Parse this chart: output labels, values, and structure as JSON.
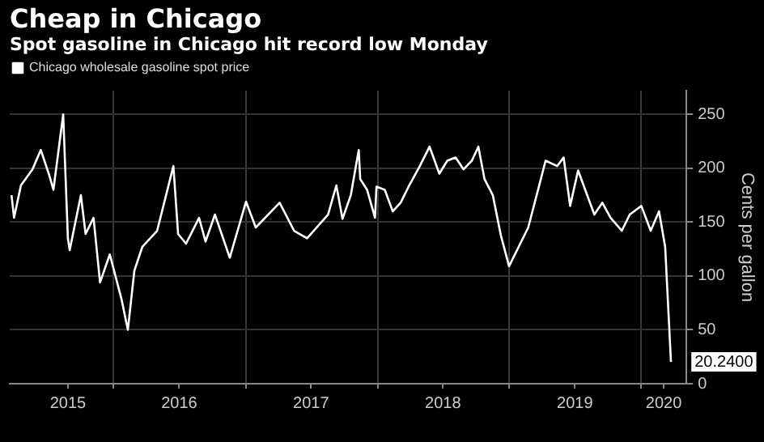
{
  "chart_data": {
    "type": "line",
    "title": "Cheap in Chicago",
    "subtitle": "Spot gasoline in Chicago hit record low Monday",
    "ylabel": "Cents per gallon",
    "x": [
      "2015-03-25",
      "2015-04-01",
      "2015-04-20",
      "2015-05-22",
      "2015-06-14",
      "2015-07-06",
      "2015-07-19",
      "2015-08-15",
      "2015-08-28",
      "2015-09-02",
      "2015-10-03",
      "2015-10-16",
      "2015-11-07",
      "2015-11-25",
      "2015-12-22",
      "2016-01-23",
      "2016-02-10",
      "2016-02-28",
      "2016-03-21",
      "2016-05-01",
      "2016-06-15",
      "2016-06-28",
      "2016-07-20",
      "2016-08-25",
      "2016-09-12",
      "2016-10-08",
      "2016-11-18",
      "2017-01-02",
      "2017-01-29",
      "2017-04-05",
      "2017-05-15",
      "2017-06-20",
      "2017-08-17",
      "2017-09-09",
      "2017-09-26",
      "2017-10-19",
      "2017-11-10",
      "2017-11-14",
      "2017-12-03",
      "2017-12-25",
      "2017-12-29",
      "2018-01-21",
      "2018-02-12",
      "2018-03-06",
      "2018-03-28",
      "2018-04-28",
      "2018-05-25",
      "2018-06-21",
      "2018-07-13",
      "2018-08-05",
      "2018-08-27",
      "2018-09-19",
      "2018-10-07",
      "2018-10-24",
      "2018-11-16",
      "2018-12-08",
      "2018-12-31",
      "2019-01-22",
      "2019-02-22",
      "2019-03-29",
      "2019-04-11",
      "2019-05-13",
      "2019-05-31",
      "2019-06-18",
      "2019-07-10",
      "2019-08-02",
      "2019-08-24",
      "2019-09-15",
      "2019-10-08",
      "2019-11-08",
      "2019-11-30",
      "2020-01-01",
      "2020-01-27",
      "2020-02-19",
      "2020-03-07",
      "2020-03-23"
    ],
    "series": [
      {
        "name": "Chicago wholesale gasoline spot price",
        "color": "#ffffff",
        "values": [
          175,
          154,
          184,
          199,
          217,
          195,
          180,
          250,
          135,
          124,
          175,
          139,
          154,
          94,
          120,
          79,
          50,
          105,
          127,
          142,
          202,
          139,
          130,
          154,
          132,
          157,
          117,
          169,
          145,
          168,
          142,
          135,
          157,
          184,
          153,
          175,
          217,
          190,
          180,
          154,
          183,
          180,
          160,
          168,
          183,
          202,
          220,
          195,
          207,
          210,
          199,
          207,
          220,
          190,
          175,
          138,
          109,
          124,
          145,
          190,
          207,
          202,
          210,
          165,
          198,
          177,
          157,
          168,
          154,
          142,
          157,
          165,
          142,
          160,
          127,
          20.24
        ]
      }
    ],
    "xlim": [
      "2015-03-20",
      "2020-05-05"
    ],
    "xticks": [
      {
        "value": "2015-08-28",
        "label": "2015"
      },
      {
        "value": "2016-01-01",
        "label": null
      },
      {
        "value": "2016-07-01",
        "label": "2016"
      },
      {
        "value": "2017-01-01",
        "label": null
      },
      {
        "value": "2017-07-01",
        "label": "2017"
      },
      {
        "value": "2018-01-01",
        "label": null
      },
      {
        "value": "2018-07-01",
        "label": "2018"
      },
      {
        "value": "2019-01-01",
        "label": null
      },
      {
        "value": "2019-07-01",
        "label": "2019"
      },
      {
        "value": "2020-01-01",
        "label": null
      },
      {
        "value": "2020-03-03",
        "label": "2020"
      }
    ],
    "ylim": [
      0,
      272
    ],
    "yticks": [
      0,
      50,
      100,
      150,
      200,
      250
    ],
    "annotations": [
      {
        "text": "20.2400",
        "x": "2020-03-23",
        "y": 20.24
      }
    ],
    "grid": true,
    "legend": "top left",
    "marker": "none",
    "line_style": "solid"
  }
}
